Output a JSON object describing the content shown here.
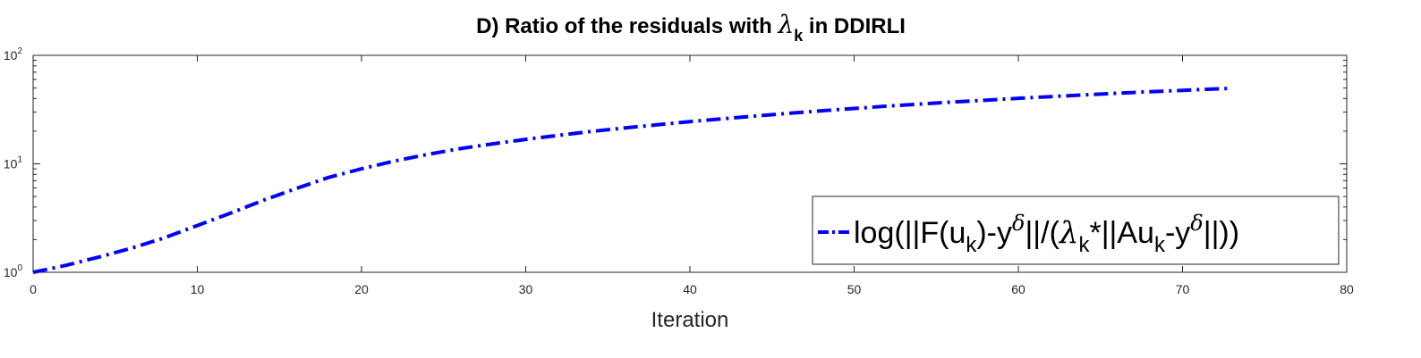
{
  "chart_data": {
    "type": "line",
    "title": {
      "prefix": "D) Ratio of the residuals with ",
      "symbol": "λ",
      "subscript": "k",
      "suffix": " in DDIRLI"
    },
    "xlabel": "Iteration",
    "ylabel": "",
    "xlim": [
      0,
      80
    ],
    "ylim": [
      1,
      100
    ],
    "yscale": "log",
    "x_ticks": [
      "0",
      "10",
      "20",
      "30",
      "40",
      "50",
      "60",
      "70",
      "80"
    ],
    "y_ticks": [
      {
        "base": "10",
        "exp": "0"
      },
      {
        "base": "10",
        "exp": "1"
      },
      {
        "base": "10",
        "exp": "2"
      }
    ],
    "grid": false,
    "legend_position": "bottom-right",
    "series": [
      {
        "name": "log(||F(u_k)-y^δ||/(λ_k*||Au_k-y^δ||))",
        "color": "#0000ff",
        "line_style": "dash-dot",
        "x": [
          0,
          2,
          4,
          6,
          8,
          10,
          12,
          14,
          16,
          18,
          20,
          22,
          24,
          26,
          28,
          30,
          32,
          34,
          36,
          38,
          40,
          42,
          44,
          46,
          48,
          50,
          52,
          54,
          56,
          58,
          60,
          62,
          64,
          66,
          68,
          70,
          72,
          73
        ],
        "y": [
          1.0,
          1.16,
          1.38,
          1.67,
          2.08,
          2.7,
          3.5,
          4.6,
          5.9,
          7.5,
          9.0,
          10.6,
          12.2,
          13.8,
          15.3,
          16.8,
          18.3,
          19.9,
          21.4,
          22.9,
          24.5,
          26.0,
          27.6,
          29.2,
          30.8,
          32.4,
          34.0,
          35.5,
          37.1,
          38.6,
          40.2,
          41.7,
          43.2,
          44.7,
          46.2,
          47.6,
          49.0,
          49.7
        ]
      }
    ]
  },
  "legend": {
    "entry": {
      "p1": "log(||F(u",
      "p1_sub": "k",
      "p2": ")-y",
      "p2_sup": "δ",
      "p3": "||/(",
      "p3_greek": "λ",
      "p3_sub": "k",
      "p4": "*||Au",
      "p4_sub": "k",
      "p5": "-y",
      "p5_sup": "δ",
      "p6": "||))"
    }
  }
}
